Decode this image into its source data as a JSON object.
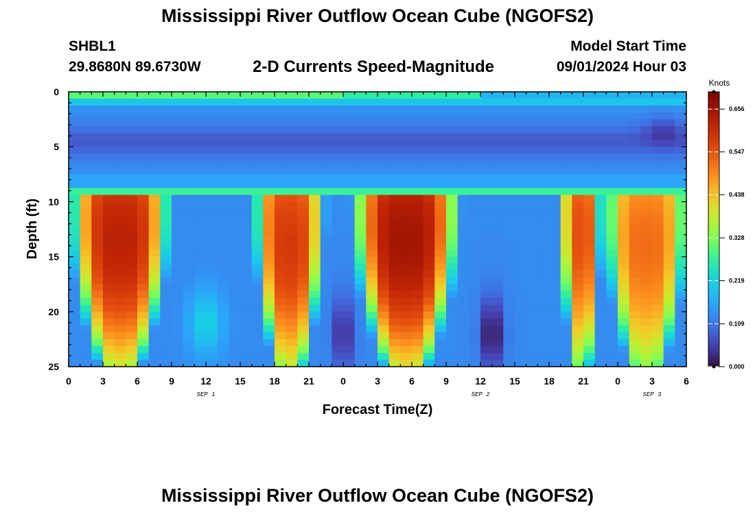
{
  "header": {
    "title": "Mississippi River Outflow Ocean Cube (NGOFS2)",
    "station_id": "SHBL1",
    "station_coords": "29.8680N  89.6730W",
    "subtitle": "2-D Currents Speed-Magnitude",
    "model_label": "Model Start Time",
    "model_time": "09/01/2024 Hour 03"
  },
  "footer": {
    "title": "Mississippi River Outflow Ocean Cube (NGOFS2)"
  },
  "chart_data": {
    "type": "heatmap",
    "title": "2-D Currents Speed-Magnitude",
    "xlabel": "Forecast Time(Z)",
    "ylabel": "Depth (ft)",
    "x_hours_range": [
      0,
      54
    ],
    "x_tick_labels": [
      "0",
      "3",
      "6",
      "9",
      "12",
      "15",
      "18",
      "21",
      "0",
      "3",
      "6",
      "9",
      "12",
      "15",
      "18",
      "21",
      "0",
      "3",
      "6"
    ],
    "date_labels": [
      {
        "label": "SEP 1",
        "hour": 12
      },
      {
        "label": "SEP 2",
        "hour": 36
      },
      {
        "label": "SEP 3",
        "hour": 51
      }
    ],
    "y_range": [
      0,
      25
    ],
    "y_ticks": [
      0,
      5,
      10,
      15,
      20,
      25
    ],
    "colorbar": {
      "unit": "Knots",
      "range": [
        0.0,
        0.7
      ],
      "tick_labels": [
        "0.000",
        "0.109",
        "0.219",
        "0.328",
        "0.438",
        "0.547",
        "0.656"
      ],
      "tick_values": [
        0.0,
        0.109,
        0.219,
        0.328,
        0.438,
        0.547,
        0.656
      ]
    },
    "surface_layer": {
      "depth_range": [
        0,
        0.6
      ],
      "speed_knots": 0.3
    },
    "upper_layer": {
      "depth_range": [
        0.6,
        7.8
      ],
      "speed_knots": 0.1
    },
    "transition_layer": {
      "depth_range": [
        7.8,
        9.6
      ],
      "speed_knots": 0.23
    },
    "lower_layer_cells": [
      {
        "hour_center": 4.5,
        "hour_halfwidth": 4.2,
        "depth_center": 13.5,
        "peak_knots": 0.62
      },
      {
        "hour_center": 19.3,
        "hour_halfwidth": 3.0,
        "depth_center": 14.0,
        "peak_knots": 0.58
      },
      {
        "hour_center": 29.5,
        "hour_halfwidth": 4.5,
        "depth_center": 13.5,
        "peak_knots": 0.65
      },
      {
        "hour_center": 44.8,
        "hour_halfwidth": 1.8,
        "depth_center": 13.0,
        "peak_knots": 0.55
      },
      {
        "hour_center": 50.5,
        "hour_halfwidth": 3.6,
        "depth_center": 14.0,
        "peak_knots": 0.52
      }
    ],
    "lower_layer_minima": [
      {
        "hour": 24.0,
        "depth": 22.0,
        "speed_knots": 0.03
      },
      {
        "hour": 37.0,
        "depth": 22.0,
        "speed_knots": 0.0
      }
    ]
  }
}
